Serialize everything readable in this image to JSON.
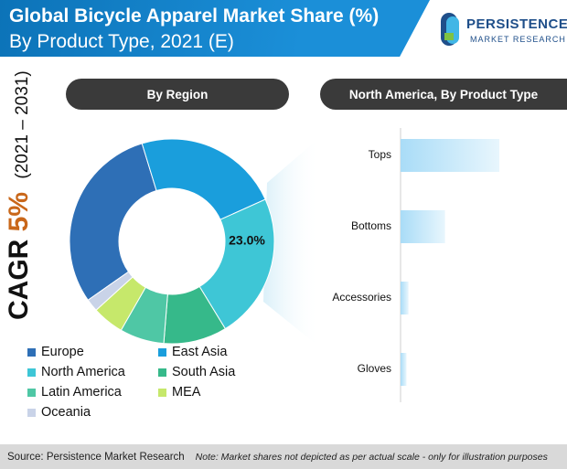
{
  "title": {
    "line1": "Global Bicycle Apparel Market Share (%)",
    "line2": "By Product Type, 2021 (E)"
  },
  "logo": {
    "name": "PERSISTENCE",
    "tagline": "MARKET RESEARCH"
  },
  "cagr": {
    "label": "CAGR",
    "value": "5%",
    "period": "(2021 – 2031)"
  },
  "panels": {
    "left_header": "By Region",
    "right_header": "North America, By Product Type"
  },
  "chart_data": [
    {
      "type": "pie",
      "title": "By Region",
      "labels": [
        "Europe",
        "East Asia",
        "North America",
        "South Asia",
        "Latin America",
        "MEA",
        "Oceania"
      ],
      "values": [
        30,
        23,
        23,
        10,
        7,
        5,
        2
      ],
      "colors": [
        "#2e6fb6",
        "#1a9edc",
        "#3ec6d6",
        "#36b98a",
        "#4fc7a5",
        "#c6e86b",
        "#c9d3e8"
      ],
      "highlight_label": "23.0%"
    },
    {
      "type": "bar",
      "orientation": "horizontal",
      "title": "North America, By Product Type",
      "categories": [
        "Tops",
        "Bottoms",
        "Accessories",
        "Gloves"
      ],
      "values": [
        100,
        45,
        8,
        6
      ]
    }
  ],
  "footer": {
    "source": "Source: Persistence Market Research",
    "note": "Note: Market shares not depicted as per actual scale - only for illustration purposes"
  },
  "colors": {
    "title_band": "#1b8fd8",
    "pill": "#3a3a3a",
    "bar_start": "#a9dcf7",
    "bar_end": "#ffffff",
    "cagr_accent": "#c9671a"
  }
}
